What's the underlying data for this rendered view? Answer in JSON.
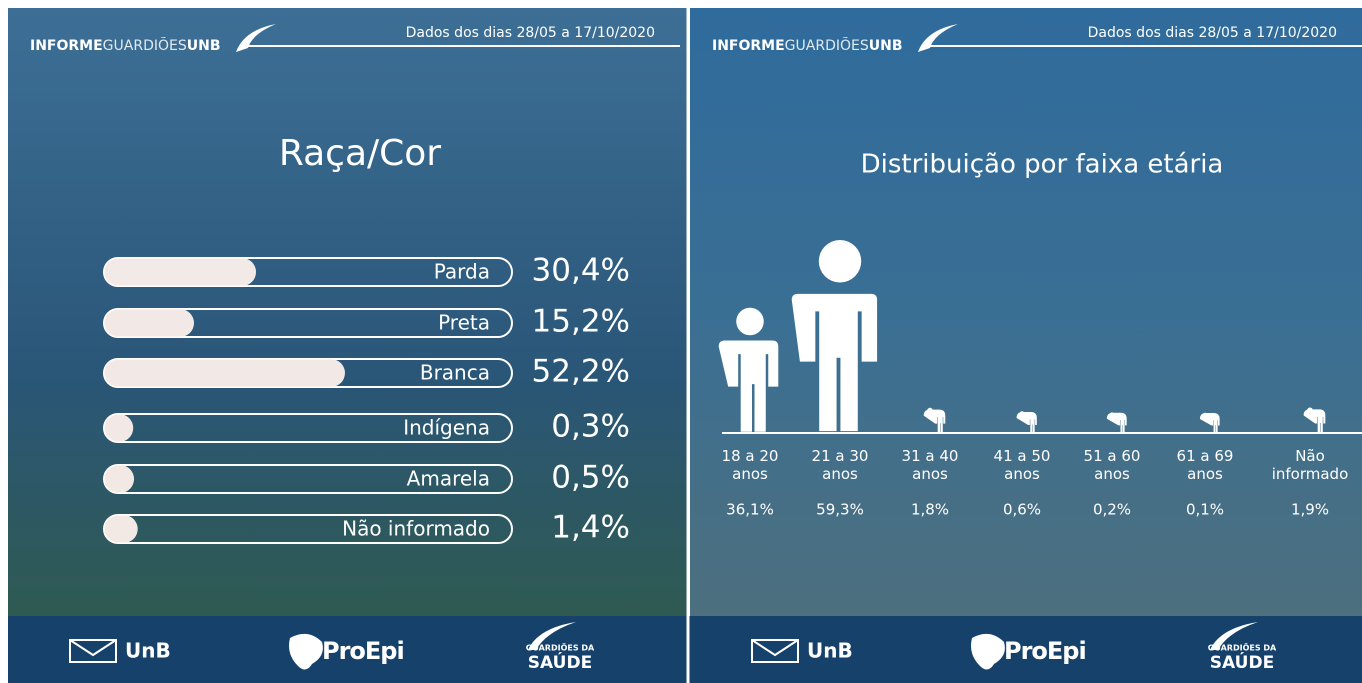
{
  "panels": [
    {
      "brand": [
        "INFORME",
        "GUARDIÕES",
        "UNB"
      ],
      "date": "Dados dos dias 28/05 a 17/10/2020",
      "footer": [
        "UnB",
        "ProEpi",
        "GUARDIÕES DA",
        "SAÚDE"
      ]
    },
    {
      "brand": [
        "INFORME",
        "GUARDIÕES",
        "UNB"
      ],
      "date": "Dados dos dias 28/05 a 17/10/2020",
      "footer": [
        "UnB",
        "ProEpi",
        "GUARDIÕES DA",
        "SAÚDE"
      ]
    }
  ],
  "chart_data": [
    {
      "type": "hbar",
      "title": "Raça/Cor",
      "categories": [
        "Parda",
        "Preta",
        "Branca",
        "Indígena",
        "Amarela",
        "Não informado"
      ],
      "values": [
        30.4,
        15.2,
        52.2,
        0.3,
        0.5,
        1.4
      ],
      "value_labels": [
        "30,4%",
        "15,2%",
        "52,2%",
        "0,3%",
        "0,5%",
        "1,4%"
      ],
      "xlim": [
        0,
        100
      ],
      "color": "#ffffff"
    },
    {
      "type": "pictograph",
      "title": "Distribuição por faixa etária",
      "categories": [
        "18 a 20 anos",
        "21 a 30 anos",
        "31 a 40 anos",
        "41 a 50 anos",
        "51 a 60 anos",
        "61 a 69 anos",
        "Não informado"
      ],
      "values": [
        36.1,
        59.3,
        1.8,
        0.6,
        0.2,
        0.1,
        1.9
      ],
      "value_labels": [
        "36,1%",
        "59,3%",
        "1,8%",
        "0,6%",
        "0,2%",
        "0,1%",
        "1,9%"
      ],
      "ylim": [
        0,
        60
      ],
      "color": "#ffffff"
    }
  ]
}
